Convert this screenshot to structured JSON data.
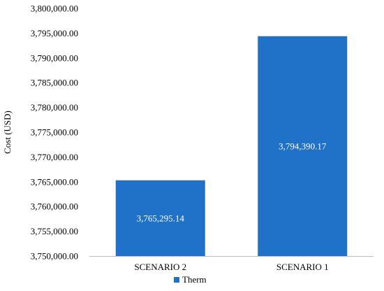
{
  "chart_data": {
    "type": "bar",
    "title": "",
    "xlabel": "",
    "ylabel": "Cost (USD)",
    "categories": [
      "SCENARIO 2",
      "SCENARIO 1"
    ],
    "series": [
      {
        "name": "Therm",
        "values": [
          3765295.14,
          3794390.17
        ],
        "value_labels": [
          "3,765,295.14",
          "3,794,390.17"
        ],
        "color": "#1F72C8"
      }
    ],
    "ylim": [
      3750000,
      3800000
    ],
    "y_ticks": [
      3750000,
      3755000,
      3760000,
      3765000,
      3770000,
      3775000,
      3780000,
      3785000,
      3790000,
      3795000,
      3800000
    ],
    "y_tick_labels": [
      "3,750,000.00",
      "3,755,000.00",
      "3,760,000.00",
      "3,765,000.00",
      "3,770,000.00",
      "3,775,000.00",
      "3,780,000.00",
      "3,785,000.00",
      "3,790,000.00",
      "3,795,000.00",
      "3,800,000.00"
    ],
    "grid": false,
    "legend": "bottom-center",
    "axis_color": "#BFBFBF"
  }
}
